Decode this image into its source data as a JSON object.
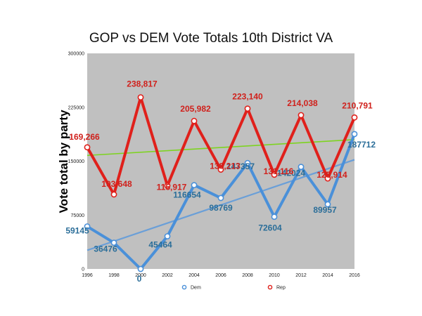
{
  "chart_data": {
    "type": "line",
    "title": "GOP vs DEM Vote Totals 10th District VA",
    "xlabel": "",
    "ylabel": "Vote total by party",
    "x": [
      1996,
      1998,
      2000,
      2002,
      2004,
      2006,
      2008,
      2010,
      2012,
      2014,
      2016
    ],
    "xticks": [
      "1996",
      "1998",
      "2000",
      "2002",
      "2004",
      "2006",
      "2008",
      "2010",
      "2012",
      "2014",
      "2016"
    ],
    "yticks": [
      "0",
      "75000",
      "150000",
      "225000",
      "300000"
    ],
    "ylim": [
      0,
      300000
    ],
    "grid": false,
    "legend": "bottom",
    "series": [
      {
        "name": "Dem",
        "color": "#4a90d9",
        "values": [
          59145,
          36476,
          0,
          45464,
          116654,
          98769,
          147357,
          72604,
          142024,
          89957,
          187712
        ],
        "labels": [
          "59145",
          "36476",
          "0",
          "45464",
          "116654",
          "98769",
          "147357",
          "72604",
          "142024",
          "89957",
          "187712"
        ],
        "trend": [
          26000,
          152000
        ]
      },
      {
        "name": "Rep",
        "color": "#e0201b",
        "values": [
          169266,
          103648,
          238817,
          115917,
          205982,
          138213,
          223140,
          131116,
          214038,
          125914,
          210791
        ],
        "labels": [
          "169,266",
          "103,648",
          "238,817",
          "115,917",
          "205,982",
          "138,213",
          "223,140",
          "131,116",
          "214,038",
          "125,914",
          "210,791"
        ],
        "trend": [
          158000,
          180000
        ]
      }
    ],
    "colors": {
      "plot_bg": "#c0c0c0",
      "dem_label": "#2b6e99",
      "rep_label": "#d0211c",
      "dem_trend": "#6a9fd8",
      "rep_trend": "#7ed321"
    }
  }
}
